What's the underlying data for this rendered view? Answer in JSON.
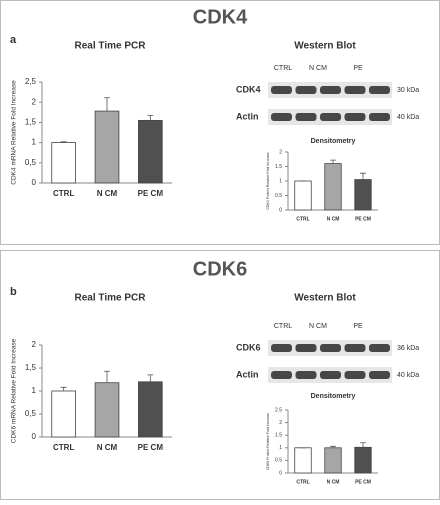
{
  "panels": [
    {
      "label": "a",
      "title": "CDK4",
      "pcr_title": "Real Time PCR",
      "blot_title": "Western Blot",
      "lanes": [
        "CTRL",
        "N CM",
        "PE"
      ],
      "blot_rows": [
        {
          "name": "CDK4",
          "size": "30 kDa"
        },
        {
          "name": "Actin",
          "size": "40 kDa"
        }
      ]
    },
    {
      "label": "b",
      "title": "CDK6",
      "pcr_title": "Real Time PCR",
      "blot_title": "Western Blot",
      "lanes": [
        "CTRL",
        "N CM",
        "PE"
      ],
      "blot_rows": [
        {
          "name": "CDK6",
          "size": "36 kDa"
        },
        {
          "name": "Actin",
          "size": "40 kDa"
        }
      ]
    }
  ],
  "chart_data": [
    {
      "type": "bar",
      "y_label": "CDK4 mRNA Relative Fold Increase",
      "categories": [
        "CTRL",
        "N CM",
        "PE CM"
      ],
      "values": [
        1.0,
        1.78,
        1.55
      ],
      "errors": [
        0.02,
        0.33,
        0.12
      ],
      "colors": [
        "#ffffff",
        "#a6a6a6",
        "#505050"
      ],
      "ylim": [
        0,
        2.5
      ],
      "yticks": [
        0,
        {
          "value": 0.5,
          "label": "0,5"
        },
        1,
        {
          "value": 1.5,
          "label": "1,5"
        },
        2,
        {
          "value": 2.5,
          "label": "2,5"
        }
      ]
    },
    {
      "type": "bar",
      "title": "Densitometry",
      "y_label": "CDK4 Protein Relative Fold Increase",
      "categories": [
        "CTRL",
        "N CM",
        "PE CM"
      ],
      "values": [
        1.0,
        1.6,
        1.05
      ],
      "errors": [
        0.0,
        0.12,
        0.22
      ],
      "colors": [
        "#ffffff",
        "#a6a6a6",
        "#505050"
      ],
      "ylim": [
        0,
        2
      ],
      "yticks": [
        0,
        0.5,
        1,
        1.5,
        2
      ]
    },
    {
      "type": "bar",
      "y_label": "CDK6 mRNA Relative Fold Increase",
      "categories": [
        "CTRL",
        "N CM",
        "PE CM"
      ],
      "values": [
        1.0,
        1.18,
        1.2
      ],
      "errors": [
        0.08,
        0.25,
        0.15
      ],
      "colors": [
        "#ffffff",
        "#a6a6a6",
        "#505050"
      ],
      "ylim": [
        0,
        2
      ],
      "yticks": [
        0,
        {
          "value": 0.5,
          "label": "0,5"
        },
        1,
        {
          "value": 1.5,
          "label": "1,5"
        },
        2
      ]
    },
    {
      "type": "bar",
      "title": "Densitometry",
      "y_label": "CDK6 Protein Relative Fold Increase",
      "categories": [
        "CTRL",
        "N CM",
        "PE CM"
      ],
      "values": [
        1.0,
        1.0,
        1.02
      ],
      "errors": [
        0.0,
        0.06,
        0.18
      ],
      "colors": [
        "#ffffff",
        "#a6a6a6",
        "#505050"
      ],
      "ylim": [
        0,
        2.5
      ],
      "yticks": [
        0,
        0.5,
        1,
        1.5,
        2,
        2.5
      ]
    }
  ]
}
